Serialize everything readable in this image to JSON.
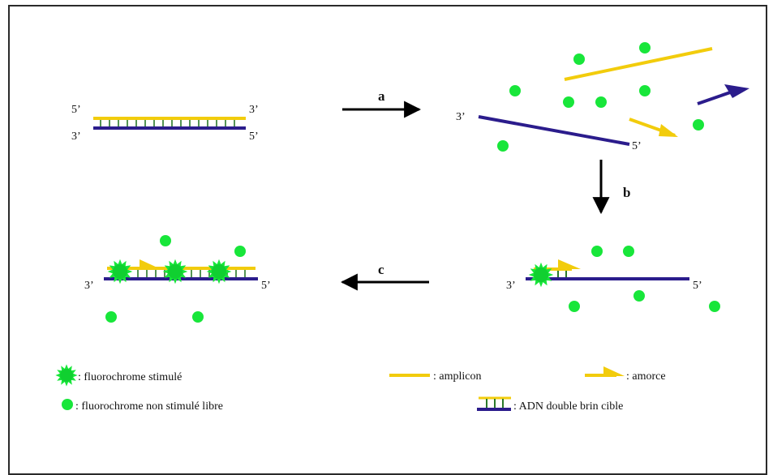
{
  "labels": {
    "five_prime": "5’",
    "three_prime": "3’"
  },
  "steps": {
    "a": "a",
    "b": "b",
    "c": "c"
  },
  "legend": {
    "stimulated": ": fluorochrome stimulé",
    "free": ": fluorochrome non stimulé libre",
    "amplicon": ": amplicon",
    "primer": ": amorce",
    "target": ": ADN double brin cible"
  },
  "colors": {
    "yellow": "#F2CC0C",
    "navy": "#2B1C8C",
    "green": "#18E63A",
    "arrow": "#000000",
    "border": "#2A2A2A"
  },
  "icons": {
    "stimulated": "starburst-fluorochrome-icon",
    "free": "green-dot-icon",
    "amplicon": "yellow-line-icon",
    "primer": "yellow-half-arrow-icon",
    "target": "double-strand-dna-icon"
  }
}
